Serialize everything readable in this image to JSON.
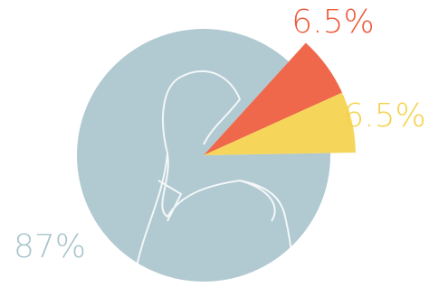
{
  "chart_data": {
    "type": "pie",
    "values": [
      87,
      6.5,
      6.5
    ],
    "value_labels": [
      "87%",
      "6.5%",
      "6.5%"
    ],
    "colors": [
      "#a8c3cc",
      "#ee5b3c",
      "#f4d24c"
    ]
  }
}
